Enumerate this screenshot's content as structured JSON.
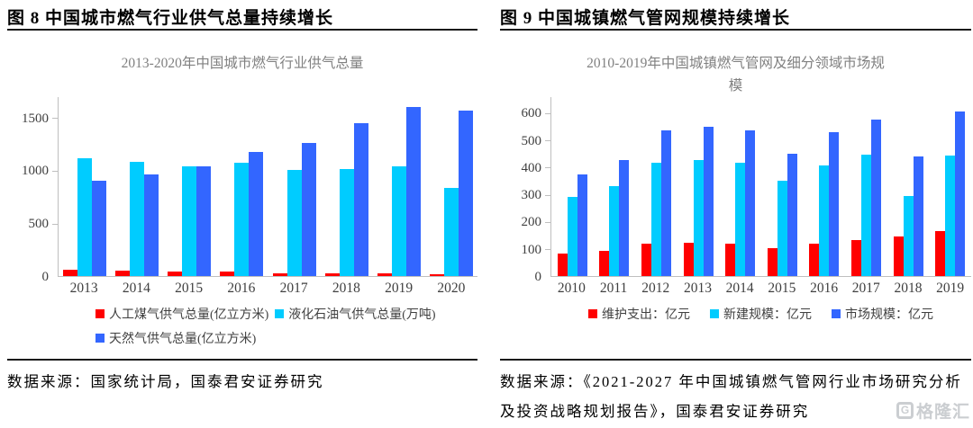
{
  "panels": [
    {
      "figure_title": "图 8 中国城市燃气行业供气总量持续增长",
      "source": "数据来源：国家统计局，国泰君安证券研究"
    },
    {
      "figure_title": "图 9 中国城镇燃气管网规模持续增长",
      "source": "数据来源：《2021-2027 年中国城镇燃气管网行业市场研究分析及投资战略规划报告》，国泰君安证券研究"
    }
  ],
  "chart_data": [
    {
      "type": "bar",
      "title": "2013-2020年中国城市燃气行业供气总量",
      "categories": [
        "2013",
        "2014",
        "2015",
        "2016",
        "2017",
        "2018",
        "2019",
        "2020"
      ],
      "series": [
        {
          "name": "人工煤气供气总量(亿立方米)",
          "color": "#FF0000",
          "values": [
            60,
            50,
            45,
            42,
            25,
            25,
            25,
            20
          ]
        },
        {
          "name": "液化石油气供气总量(万吨)",
          "color": "#00CCFF",
          "values": [
            1110,
            1080,
            1035,
            1075,
            1000,
            1010,
            1040,
            830
          ]
        },
        {
          "name": "天然气供气总量(亿立方米)",
          "color": "#3366FF",
          "values": [
            900,
            960,
            1040,
            1170,
            1260,
            1445,
            1600,
            1560
          ]
        }
      ],
      "xlabel": "",
      "ylabel": "",
      "yticks": [
        0,
        500,
        1000,
        1500
      ],
      "ylim": [
        0,
        1700
      ],
      "grid": false,
      "legend_position": "bottom-left-2col"
    },
    {
      "type": "bar",
      "title": "2010-2019年中国城镇燃气管网及细分领域市场规模",
      "categories": [
        "2010",
        "2011",
        "2012",
        "2013",
        "2014",
        "2015",
        "2016",
        "2017",
        "2018",
        "2019"
      ],
      "series": [
        {
          "name": "维护支出：亿元",
          "color": "#FF0000",
          "values": [
            84,
            94,
            120,
            123,
            119,
            101,
            120,
            132,
            146,
            164
          ]
        },
        {
          "name": "新建规模：亿元",
          "color": "#00CCFF",
          "values": [
            290,
            330,
            415,
            425,
            415,
            350,
            406,
            445,
            295,
            442
          ]
        },
        {
          "name": "市场规模：亿元",
          "color": "#3366FF",
          "values": [
            372,
            425,
            535,
            548,
            535,
            450,
            528,
            575,
            438,
            605
          ]
        }
      ],
      "xlabel": "",
      "ylabel": "",
      "yticks": [
        0,
        100,
        200,
        300,
        400,
        500,
        600
      ],
      "ylim": [
        0,
        660
      ],
      "grid": false,
      "legend_position": "bottom-center-row"
    }
  ],
  "watermark": {
    "icon_letter": "G",
    "text": "格隆汇"
  },
  "colors": {
    "series_red": "#FF0000",
    "series_cyan": "#00CCFF",
    "series_blue": "#3366FF",
    "axis_line": "#BFBFBF",
    "tick_label": "#3F3F3F",
    "chart_title": "#808080",
    "rule": "#1A1A1A",
    "watermark": "#C3C6CA"
  }
}
